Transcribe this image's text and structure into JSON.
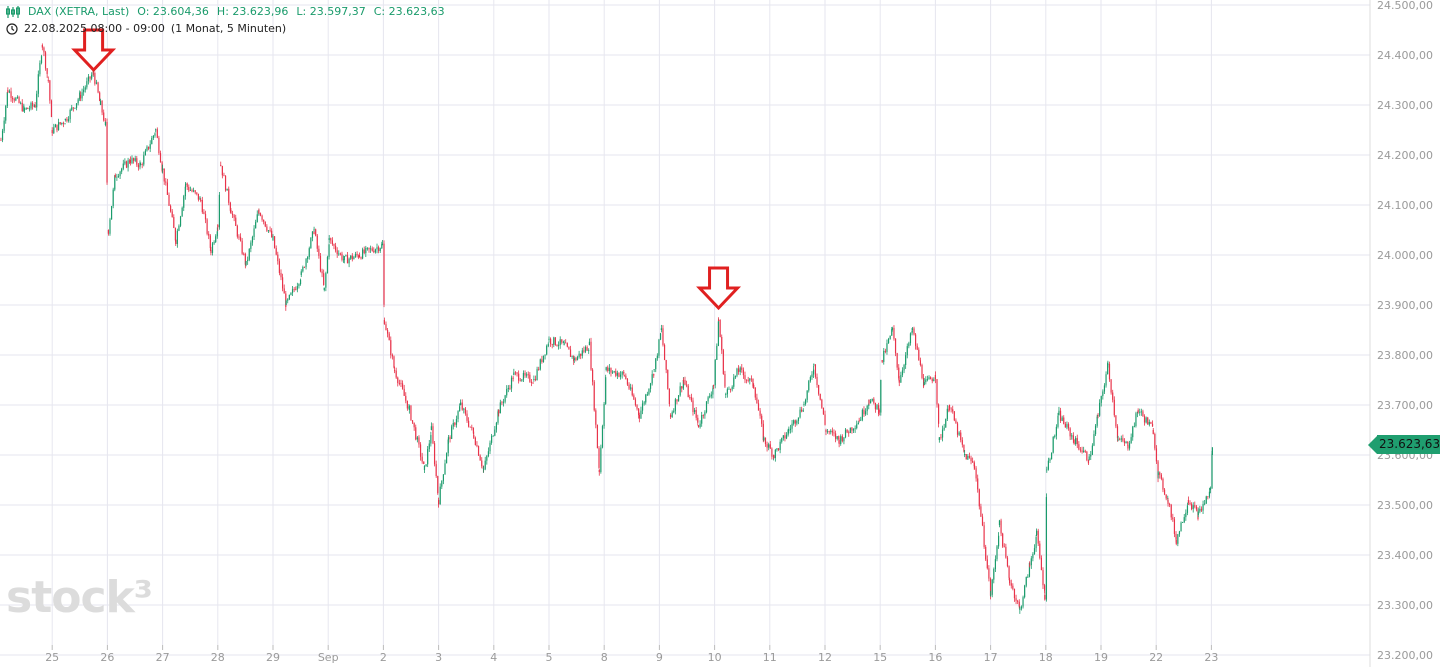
{
  "header": {
    "icon": "candlestick-chart-icon",
    "instrument": "DAX (XETRA, Last)",
    "open": "O: 23.604,36",
    "high": "H: 23.623,96",
    "low": "L: 23.597,37",
    "close": "C: 23.623,63",
    "clock_icon": "clock-icon",
    "period": "22.08.2025 08:00 - 09:00",
    "range": "(1 Monat, 5 Minuten)"
  },
  "last_price_label": "23.623,63",
  "logo": "stock3",
  "colors": {
    "up": "#1a9b6b",
    "down": "#e8334a",
    "annotation": "#e02020",
    "grid": "#e6e6ef"
  },
  "annotations": [
    {
      "type": "down-arrow",
      "at": "2025-08-25T18:30"
    },
    {
      "type": "down-arrow",
      "at": "2025-09-10T09:00"
    }
  ],
  "chart_data": {
    "type": "candlestick",
    "interval": "5 Minuten",
    "ylim": [
      23200,
      24500
    ],
    "grid": true,
    "y_ticks": [
      "23.200,00",
      "23.300,00",
      "23.400,00",
      "23.500,00",
      "23.600,00",
      "23.700,00",
      "23.800,00",
      "23.900,00",
      "24.000,00",
      "24.100,00",
      "24.200,00",
      "24.300,00",
      "24.400,00",
      "24.500,00"
    ],
    "y_tick_values": [
      23200,
      23300,
      23400,
      23500,
      23600,
      23700,
      23800,
      23900,
      24000,
      24100,
      24200,
      24300,
      24400,
      24500
    ],
    "trading_days": [
      "2025-08-22",
      "2025-08-25",
      "2025-08-26",
      "2025-08-27",
      "2025-08-28",
      "2025-08-29",
      "2025-09-01",
      "2025-09-02",
      "2025-09-03",
      "2025-09-04",
      "2025-09-05",
      "2025-09-08",
      "2025-09-09",
      "2025-09-10",
      "2025-09-11",
      "2025-09-12",
      "2025-09-15",
      "2025-09-16",
      "2025-09-17",
      "2025-09-18",
      "2025-09-19",
      "2025-09-22",
      "2025-09-23"
    ],
    "x_tick_labels": [
      "",
      "25",
      "26",
      "27",
      "28",
      "29",
      "Sep",
      "2",
      "3",
      "4",
      "5",
      "8",
      "9",
      "10",
      "11",
      "12",
      "15",
      "16",
      "17",
      "18",
      "19",
      "22",
      "23"
    ],
    "price_path": [
      [
        "2025-08-22T09:00",
        24230
      ],
      [
        "2025-08-22T10:45",
        24330
      ],
      [
        "2025-08-22T15:00",
        24290
      ],
      [
        "2025-08-22T17:40",
        24300
      ],
      [
        "2025-08-22T19:30",
        24420
      ],
      [
        "2025-08-22T21:00",
        24350
      ],
      [
        "2025-08-25T08:00",
        24250
      ],
      [
        "2025-08-25T11:20",
        24270
      ],
      [
        "2025-08-25T15:10",
        24320
      ],
      [
        "2025-08-25T18:25",
        24365
      ],
      [
        "2025-08-25T20:15",
        24300
      ],
      [
        "2025-08-25T21:30",
        24260
      ],
      [
        "2025-08-26T08:15",
        24050
      ],
      [
        "2025-08-26T10:00",
        24160
      ],
      [
        "2025-08-26T13:50",
        24190
      ],
      [
        "2025-08-26T16:25",
        24180
      ],
      [
        "2025-08-26T20:15",
        24250
      ],
      [
        "2025-08-27T08:00",
        24170
      ],
      [
        "2025-08-27T11:20",
        24030
      ],
      [
        "2025-08-27T13:50",
        24140
      ],
      [
        "2025-08-27T17:40",
        24110
      ],
      [
        "2025-08-27T20:15",
        24010
      ],
      [
        "2025-08-28T08:00",
        24060
      ],
      [
        "2025-08-28T08:45",
        24180
      ],
      [
        "2025-08-28T11:20",
        24090
      ],
      [
        "2025-08-28T15:10",
        23980
      ],
      [
        "2025-08-28T18:25",
        24090
      ],
      [
        "2025-08-29T08:00",
        24030
      ],
      [
        "2025-08-29T11:20",
        23900
      ],
      [
        "2025-08-29T15:10",
        23960
      ],
      [
        "2025-08-29T18:25",
        24050
      ],
      [
        "2025-08-29T21:00",
        23930
      ],
      [
        "2025-09-01T08:15",
        24030
      ],
      [
        "2025-09-01T12:05",
        23990
      ],
      [
        "2025-09-01T15:55",
        24000
      ],
      [
        "2025-09-01T21:45",
        24020
      ],
      [
        "2025-09-02T08:15",
        23870
      ],
      [
        "2025-09-02T10:50",
        23770
      ],
      [
        "2025-09-02T14:35",
        23690
      ],
      [
        "2025-09-02T18:25",
        23570
      ],
      [
        "2025-09-02T20:10",
        23650
      ],
      [
        "2025-09-03T08:00",
        23510
      ],
      [
        "2025-09-03T10:30",
        23630
      ],
      [
        "2025-09-03T13:35",
        23700
      ],
      [
        "2025-09-03T16:55",
        23640
      ],
      [
        "2025-09-03T19:25",
        23570
      ],
      [
        "2025-09-04T09:15",
        23690
      ],
      [
        "2025-09-04T13:05",
        23760
      ],
      [
        "2025-09-04T18:10",
        23750
      ],
      [
        "2025-09-05T08:00",
        23830
      ],
      [
        "2025-09-05T11:50",
        23820
      ],
      [
        "2025-09-05T14:25",
        23790
      ],
      [
        "2025-09-05T18:15",
        23820
      ],
      [
        "2025-09-05T20:45",
        23570
      ],
      [
        "2025-09-08T08:30",
        23770
      ],
      [
        "2025-09-08T13:05",
        23760
      ],
      [
        "2025-09-08T16:55",
        23680
      ],
      [
        "2025-09-08T20:40",
        23770
      ],
      [
        "2025-09-09T08:30",
        23850
      ],
      [
        "2025-09-09T10:50",
        23680
      ],
      [
        "2025-09-09T14:05",
        23750
      ],
      [
        "2025-09-09T17:55",
        23660
      ],
      [
        "2025-09-09T21:45",
        23740
      ],
      [
        "2025-09-10T09:00",
        23870
      ],
      [
        "2025-09-10T10:50",
        23720
      ],
      [
        "2025-09-10T14:05",
        23770
      ],
      [
        "2025-09-10T17:55",
        23740
      ],
      [
        "2025-09-10T20:30",
        23630
      ],
      [
        "2025-09-11T09:00",
        23600
      ],
      [
        "2025-09-11T12:50",
        23650
      ],
      [
        "2025-09-11T16:40",
        23700
      ],
      [
        "2025-09-11T19:10",
        23780
      ],
      [
        "2025-09-12T08:15",
        23650
      ],
      [
        "2025-09-12T11:35",
        23630
      ],
      [
        "2025-09-12T16:40",
        23670
      ],
      [
        "2025-09-12T19:10",
        23710
      ],
      [
        "2025-09-12T21:45",
        23690
      ],
      [
        "2025-09-15T08:30",
        23790
      ],
      [
        "2025-09-15T11:05",
        23850
      ],
      [
        "2025-09-15T12:50",
        23750
      ],
      [
        "2025-09-15T16:10",
        23850
      ],
      [
        "2025-09-15T19:10",
        23740
      ],
      [
        "2025-09-16T08:00",
        23760
      ],
      [
        "2025-09-16T09:00",
        23630
      ],
      [
        "2025-09-16T11:35",
        23700
      ],
      [
        "2025-09-16T15:25",
        23600
      ],
      [
        "2025-09-16T17:55",
        23580
      ],
      [
        "2025-09-17T08:00",
        23320
      ],
      [
        "2025-09-17T10:15",
        23460
      ],
      [
        "2025-09-17T12:50",
        23350
      ],
      [
        "2025-09-17T15:25",
        23290
      ],
      [
        "2025-09-17T17:55",
        23380
      ],
      [
        "2025-09-17T19:40",
        23440
      ],
      [
        "2025-09-17T21:45",
        23320
      ],
      [
        "2025-09-18T08:15",
        23570
      ],
      [
        "2025-09-18T11:20",
        23680
      ],
      [
        "2025-09-18T15:10",
        23630
      ],
      [
        "2025-09-18T19:00",
        23590
      ],
      [
        "2025-09-18T21:15",
        23680
      ],
      [
        "2025-09-19T09:45",
        23780
      ],
      [
        "2025-09-19T12:20",
        23630
      ],
      [
        "2025-09-19T14:50",
        23620
      ],
      [
        "2025-09-19T17:25",
        23690
      ],
      [
        "2025-09-19T21:15",
        23650
      ],
      [
        "2025-09-22T08:30",
        23560
      ],
      [
        "2025-09-22T11:00",
        23510
      ],
      [
        "2025-09-22T13:05",
        23430
      ],
      [
        "2025-09-22T16:10",
        23510
      ],
      [
        "2025-09-22T18:40",
        23480
      ],
      [
        "2025-09-22T21:45",
        23530
      ],
      [
        "2025-09-23T08:15",
        23623.63
      ]
    ],
    "last": 23623.63
  }
}
